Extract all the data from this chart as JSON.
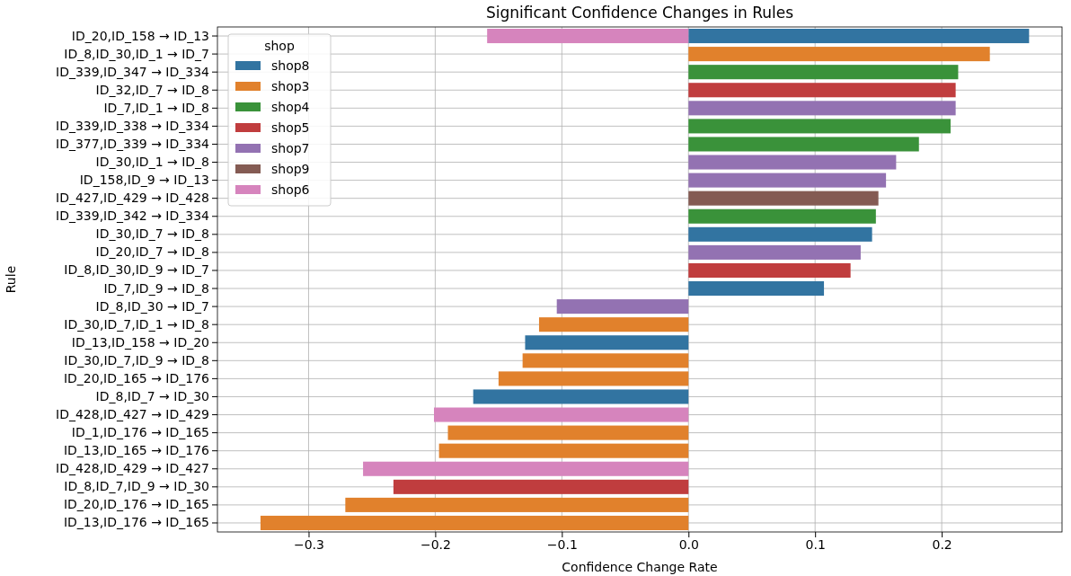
{
  "chart_data": {
    "type": "bar",
    "orientation": "horizontal",
    "title": "Significant Confidence Changes in Rules",
    "xlabel": "Confidence Change Rate",
    "ylabel": "Rule",
    "legend_title": "shop",
    "legend": "top left",
    "grid": true,
    "categories": [
      "ID_20,ID_158 → ID_13",
      "ID_8,ID_30,ID_1 → ID_7",
      "ID_339,ID_347 → ID_334",
      "ID_32,ID_7 → ID_8",
      "ID_7,ID_1 → ID_8",
      "ID_339,ID_338 → ID_334",
      "ID_377,ID_339 → ID_334",
      "ID_30,ID_1 → ID_8",
      "ID_158,ID_9 → ID_13",
      "ID_427,ID_429 → ID_428",
      "ID_339,ID_342 → ID_334",
      "ID_30,ID_7 → ID_8",
      "ID_20,ID_7 → ID_8",
      "ID_8,ID_30,ID_9 → ID_7",
      "ID_7,ID_9 → ID_8",
      "ID_8,ID_30 → ID_7",
      "ID_30,ID_7,ID_1 → ID_8",
      "ID_13,ID_158 → ID_20",
      "ID_30,ID_7,ID_9 → ID_8",
      "ID_20,ID_165 → ID_176",
      "ID_8,ID_7 → ID_30",
      "ID_428,ID_427 → ID_429",
      "ID_1,ID_176 → ID_165",
      "ID_13,ID_165 → ID_176",
      "ID_428,ID_429 → ID_427",
      "ID_8,ID_7,ID_9 → ID_30",
      "ID_20,ID_176 → ID_165",
      "ID_13,ID_176 → ID_165"
    ],
    "series": [
      {
        "name": "shop8",
        "color": "#3274a1",
        "values": [
          0.269,
          null,
          null,
          null,
          null,
          null,
          null,
          null,
          null,
          null,
          null,
          0.145,
          null,
          null,
          0.107,
          null,
          null,
          -0.129,
          null,
          null,
          -0.17,
          null,
          null,
          null,
          null,
          null,
          null,
          null
        ]
      },
      {
        "name": "shop3",
        "color": "#e1812c",
        "values": [
          null,
          0.238,
          null,
          null,
          null,
          null,
          null,
          null,
          null,
          null,
          null,
          null,
          null,
          null,
          null,
          null,
          -0.118,
          null,
          -0.131,
          -0.15,
          null,
          null,
          -0.19,
          -0.197,
          null,
          null,
          -0.271,
          -0.338
        ]
      },
      {
        "name": "shop4",
        "color": "#3a923a",
        "values": [
          null,
          null,
          0.213,
          null,
          null,
          0.207,
          0.182,
          null,
          null,
          null,
          0.148,
          null,
          null,
          null,
          null,
          null,
          null,
          null,
          null,
          null,
          null,
          null,
          null,
          null,
          null,
          null,
          null,
          null
        ]
      },
      {
        "name": "shop5",
        "color": "#c03d3e",
        "values": [
          null,
          null,
          null,
          0.211,
          null,
          null,
          null,
          null,
          null,
          null,
          null,
          null,
          null,
          0.128,
          null,
          null,
          null,
          null,
          null,
          null,
          null,
          null,
          null,
          null,
          null,
          -0.233,
          null,
          null
        ]
      },
      {
        "name": "shop7",
        "color": "#9372b2",
        "values": [
          null,
          null,
          null,
          null,
          0.211,
          null,
          null,
          0.164,
          0.156,
          null,
          null,
          null,
          0.136,
          null,
          null,
          -0.104,
          null,
          null,
          null,
          null,
          null,
          null,
          null,
          null,
          null,
          null,
          null,
          null
        ]
      },
      {
        "name": "shop9",
        "color": "#845b53",
        "values": [
          null,
          null,
          null,
          null,
          null,
          null,
          null,
          null,
          null,
          0.15,
          null,
          null,
          null,
          null,
          null,
          null,
          null,
          null,
          null,
          null,
          null,
          null,
          null,
          null,
          null,
          null,
          null,
          null
        ]
      },
      {
        "name": "shop6",
        "color": "#d684bd",
        "values": [
          -0.159,
          null,
          null,
          null,
          null,
          null,
          null,
          null,
          null,
          null,
          null,
          null,
          null,
          null,
          null,
          null,
          null,
          null,
          null,
          null,
          null,
          -0.201,
          null,
          null,
          -0.257,
          null,
          null,
          null
        ]
      }
    ],
    "xlim": [
      -0.372,
      0.295
    ],
    "xticks": [
      {
        "value": -0.3,
        "label": "−0.3"
      },
      {
        "value": -0.2,
        "label": "−0.2"
      },
      {
        "value": -0.1,
        "label": "−0.1"
      },
      {
        "value": 0,
        "label": "0.0"
      },
      {
        "value": 0.1,
        "label": "0.1"
      },
      {
        "value": 0.2,
        "label": "0.2"
      }
    ]
  }
}
